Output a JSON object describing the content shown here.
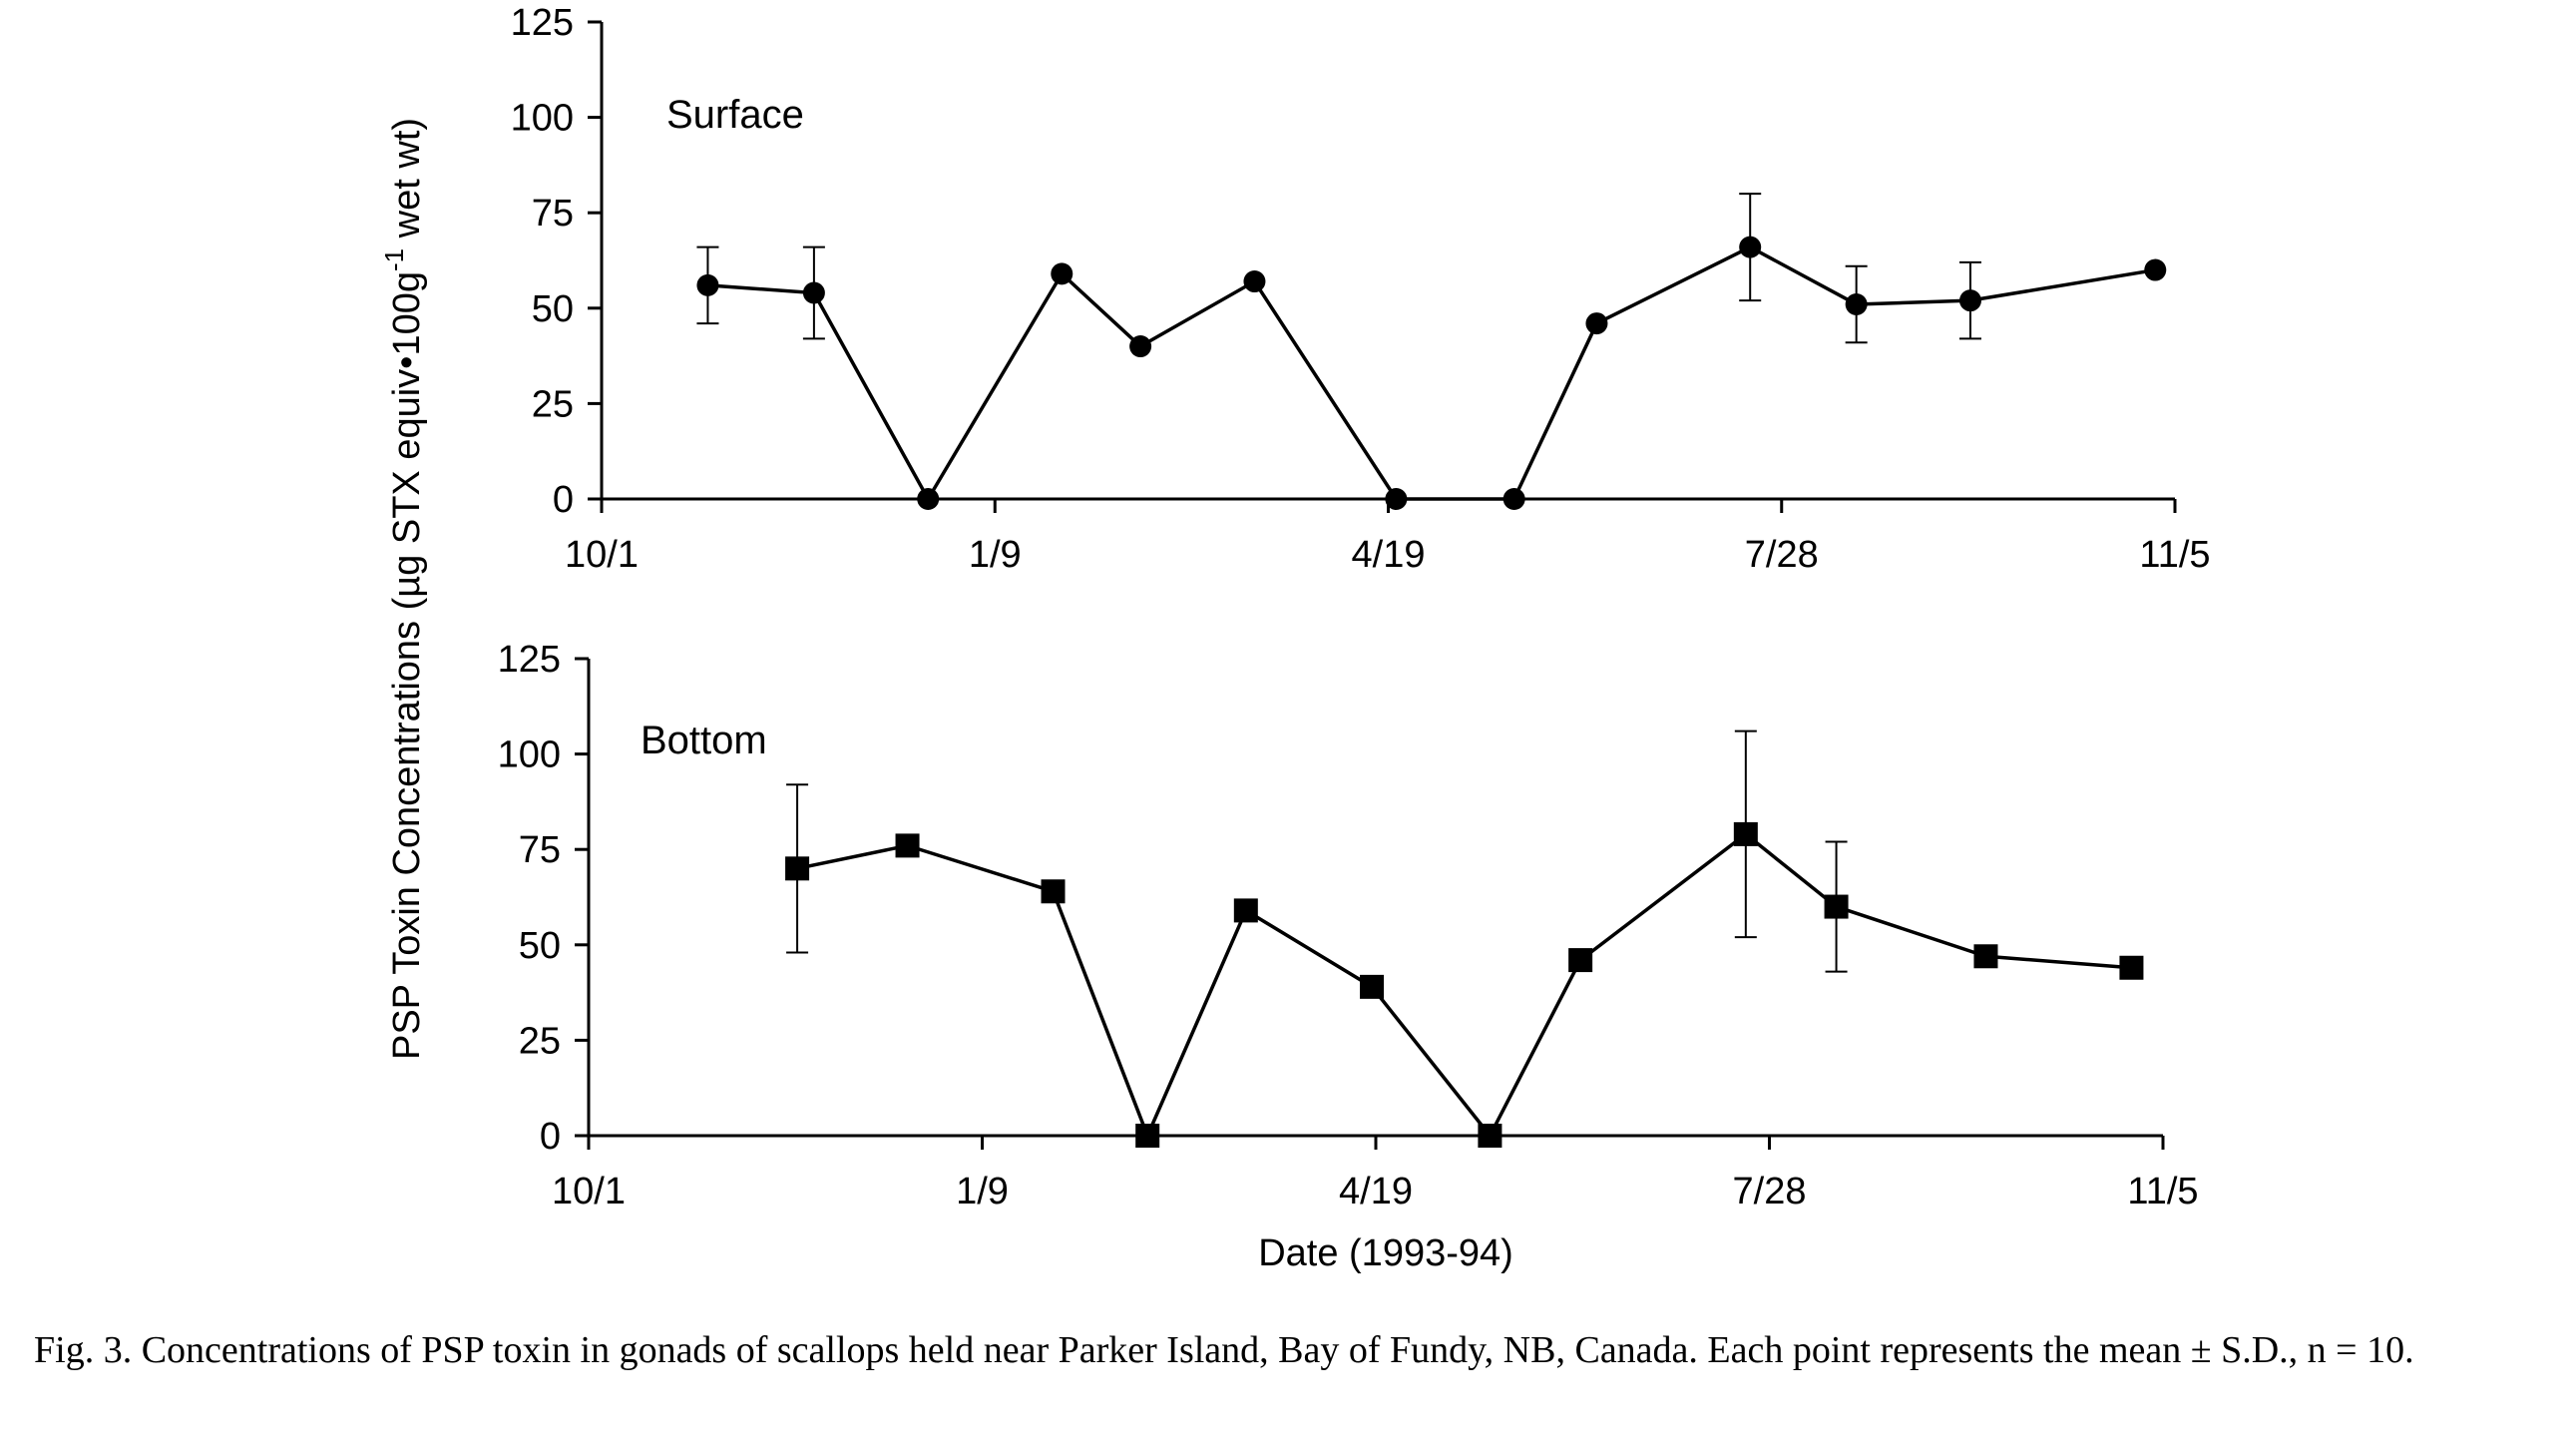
{
  "chart_data": [
    {
      "type": "line",
      "panel_label": "Surface",
      "marker": "circle",
      "x_axis": {
        "ticks": [
          "10/1",
          "1/9",
          "4/19",
          "7/28",
          "11/5"
        ],
        "ylim_note": "dates 1993-10-01 to 1994-11-05"
      },
      "ylim": [
        0,
        125
      ],
      "yticks": [
        "0",
        "25",
        "50",
        "75",
        "100",
        "125"
      ],
      "points": [
        {
          "date": "1993-10-28",
          "y": 56,
          "sd": 10
        },
        {
          "date": "1993-11-24",
          "y": 54,
          "sd": 12
        },
        {
          "date": "1993-12-23",
          "y": 0,
          "sd": null
        },
        {
          "date": "1994-01-26",
          "y": 59,
          "sd": null
        },
        {
          "date": "1994-02-15",
          "y": 40,
          "sd": null
        },
        {
          "date": "1994-03-16",
          "y": 57,
          "sd": null
        },
        {
          "date": "1994-04-21",
          "y": 0,
          "sd": null
        },
        {
          "date": "1994-05-21",
          "y": 0,
          "sd": null
        },
        {
          "date": "1994-06-11",
          "y": 46,
          "sd": null
        },
        {
          "date": "1994-07-20",
          "y": 66,
          "sd": 14
        },
        {
          "date": "1994-08-16",
          "y": 51,
          "sd": 10
        },
        {
          "date": "1994-09-14",
          "y": 52,
          "sd": 10
        },
        {
          "date": "1994-10-31",
          "y": 60,
          "sd": null
        }
      ]
    },
    {
      "type": "line",
      "panel_label": "Bottom",
      "marker": "square",
      "x_axis": {
        "ticks": [
          "10/1",
          "1/9",
          "4/19",
          "7/28",
          "11/5"
        ]
      },
      "xlabel": "Date (1993-94)",
      "ylim": [
        0,
        125
      ],
      "yticks": [
        "0",
        "25",
        "50",
        "75",
        "100",
        "125"
      ],
      "points": [
        {
          "date": "1993-11-23",
          "y": 70,
          "sd": 22
        },
        {
          "date": "1993-12-21",
          "y": 76,
          "sd": null
        },
        {
          "date": "1994-01-27",
          "y": 64,
          "sd": null
        },
        {
          "date": "1994-02-20",
          "y": 0,
          "sd": null
        },
        {
          "date": "1994-03-17",
          "y": 59,
          "sd": null
        },
        {
          "date": "1994-04-18",
          "y": 39,
          "sd": null
        },
        {
          "date": "1994-05-18",
          "y": 0,
          "sd": null
        },
        {
          "date": "1994-06-10",
          "y": 46,
          "sd": null
        },
        {
          "date": "1994-07-22",
          "y": 79,
          "sd": 27
        },
        {
          "date": "1994-08-14",
          "y": 60,
          "sd": 17
        },
        {
          "date": "1994-09-21",
          "y": 47,
          "sd": null
        },
        {
          "date": "1994-10-28",
          "y": 44,
          "sd": null
        }
      ]
    }
  ],
  "ylabel_main": "PSP Toxin Concentrations (µg STX equiv•100g",
  "ylabel_sup": "-1",
  "ylabel_tail": " wet wt)",
  "caption": "Fig. 3. Concentrations of PSP toxin in gonads of scallops held near Parker Island, Bay of Fundy, NB, Canada. Each point represents the mean ± S.D., n = 10."
}
